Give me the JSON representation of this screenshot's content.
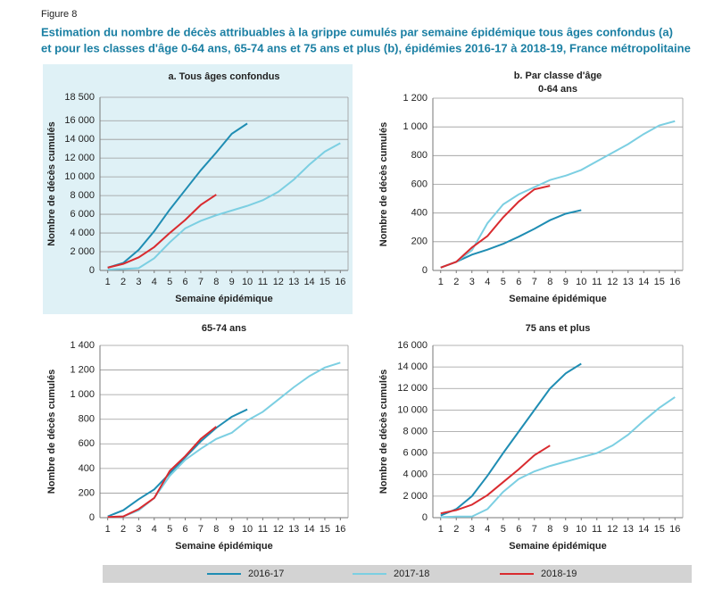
{
  "figure": "Figure 8",
  "title_lines": [
    "Estimation du nombre de décès attribuables à la grippe cumulés par semaine épidémique tous âges confondus (a)",
    "et pour les classes d'âge 0-64 ans, 65-74 ans et 75 ans et plus (b), épidémies 2016-17 à 2018-19, France métropolitaine"
  ],
  "chart_data": [
    {
      "type": "line",
      "title": "a. Tous âges confondus",
      "xlabel": "Semaine épidémique",
      "ylabel": "Nombre de décès cumulés",
      "x": [
        1,
        2,
        3,
        4,
        5,
        6,
        7,
        8,
        9,
        10,
        11,
        12,
        13,
        14,
        15,
        16
      ],
      "xlim": [
        0.5,
        16.5
      ],
      "xticks": [
        1,
        2,
        3,
        4,
        5,
        6,
        7,
        8,
        9,
        10,
        11,
        12,
        13,
        14,
        15,
        16
      ],
      "ylim": [
        0,
        18500
      ],
      "yticks": [
        0,
        {
          "value": 2000,
          "label": "2 000"
        },
        {
          "value": 4000,
          "label": "4 000"
        },
        {
          "value": 6000,
          "label": "6 000"
        },
        {
          "value": 8000,
          "label": "8 000"
        },
        {
          "value": 10000,
          "label": "10 000"
        },
        {
          "value": 12000,
          "label": "12 000"
        },
        {
          "value": 14000,
          "label": "14 000"
        },
        {
          "value": 16000,
          "label": "16 000"
        },
        {
          "value": 18500,
          "label": "18 500"
        }
      ],
      "grid": true,
      "background": "#dff1f6",
      "series": [
        {
          "name": "2016-17",
          "color": "#1f8db3",
          "values": [
            300,
            800,
            2200,
            4200,
            6500,
            8600,
            10700,
            12600,
            14600,
            15700,
            null,
            null,
            null,
            null,
            null,
            null
          ]
        },
        {
          "name": "2017-18",
          "color": "#7ccfe2",
          "values": [
            100,
            150,
            250,
            1300,
            3000,
            4500,
            5300,
            5900,
            6400,
            6900,
            7500,
            8400,
            9700,
            11300,
            12700,
            13600
          ]
        },
        {
          "name": "2018-19",
          "color": "#d92b2f",
          "values": [
            300,
            700,
            1400,
            2500,
            4000,
            5400,
            7000,
            8100,
            null,
            null,
            null,
            null,
            null,
            null,
            null,
            null
          ]
        }
      ]
    },
    {
      "type": "line",
      "title": "b. Par classe d'âge",
      "subtitle": "0-64 ans",
      "xlabel": "Semaine épidémique",
      "ylabel": "Nombre de décès cumulés",
      "x": [
        1,
        2,
        3,
        4,
        5,
        6,
        7,
        8,
        9,
        10,
        11,
        12,
        13,
        14,
        15,
        16
      ],
      "xlim": [
        0.5,
        16.5
      ],
      "xticks": [
        1,
        2,
        3,
        4,
        5,
        6,
        7,
        8,
        9,
        10,
        11,
        12,
        13,
        14,
        15,
        16
      ],
      "ylim": [
        0,
        1200
      ],
      "yticks": [
        0,
        200,
        400,
        600,
        800,
        {
          "value": 1000,
          "label": "1 000"
        },
        {
          "value": 1200,
          "label": "1 200"
        }
      ],
      "grid": true,
      "series": [
        {
          "values": [
            20,
            60,
            110,
            145,
            185,
            235,
            290,
            350,
            395,
            420,
            null,
            null,
            null,
            null,
            null,
            null
          ]
        },
        {
          "values": [
            20,
            60,
            140,
            330,
            460,
            530,
            580,
            630,
            660,
            700,
            760,
            820,
            880,
            950,
            1010,
            1040
          ]
        },
        {
          "values": [
            20,
            60,
            160,
            240,
            370,
            480,
            565,
            590,
            null,
            null,
            null,
            null,
            null,
            null,
            null,
            null
          ]
        }
      ]
    },
    {
      "type": "line",
      "title": "65-74 ans",
      "xlabel": "Semaine épidémique",
      "ylabel": "Nombre de décès cumulés",
      "x": [
        1,
        2,
        3,
        4,
        5,
        6,
        7,
        8,
        9,
        10,
        11,
        12,
        13,
        14,
        15,
        16
      ],
      "xlim": [
        0.5,
        16.5
      ],
      "xticks": [
        1,
        2,
        3,
        4,
        5,
        6,
        7,
        8,
        9,
        10,
        11,
        12,
        13,
        14,
        15,
        16
      ],
      "ylim": [
        0,
        1400
      ],
      "yticks": [
        0,
        200,
        400,
        600,
        800,
        {
          "value": 1000,
          "label": "1 000"
        },
        {
          "value": 1200,
          "label": "1 200"
        },
        {
          "value": 1400,
          "label": "1 400"
        }
      ],
      "grid": true,
      "series": [
        {
          "values": [
            10,
            60,
            150,
            230,
            360,
            490,
            620,
            730,
            820,
            880,
            null,
            null,
            null,
            null,
            null,
            null
          ]
        },
        {
          "values": [
            5,
            10,
            60,
            160,
            340,
            470,
            560,
            640,
            690,
            790,
            860,
            960,
            1060,
            1150,
            1220,
            1260
          ]
        },
        {
          "values": [
            5,
            10,
            70,
            160,
            380,
            500,
            640,
            740,
            null,
            null,
            null,
            null,
            null,
            null,
            null,
            null
          ]
        }
      ]
    },
    {
      "type": "line",
      "title": "75 ans et plus",
      "xlabel": "Semaine épidémique",
      "ylabel": "Nombre de décès cumulés",
      "x": [
        1,
        2,
        3,
        4,
        5,
        6,
        7,
        8,
        9,
        10,
        11,
        12,
        13,
        14,
        15,
        16
      ],
      "xlim": [
        0.5,
        16.5
      ],
      "xticks": [
        1,
        2,
        3,
        4,
        5,
        6,
        7,
        8,
        9,
        10,
        11,
        12,
        13,
        14,
        15,
        16
      ],
      "ylim": [
        0,
        16000
      ],
      "yticks": [
        0,
        {
          "value": 2000,
          "label": "2 000"
        },
        {
          "value": 4000,
          "label": "4 000"
        },
        {
          "value": 6000,
          "label": "6 000"
        },
        {
          "value": 8000,
          "label": "8 000"
        },
        {
          "value": 10000,
          "label": "10 000"
        },
        {
          "value": 12000,
          "label": "12 000"
        },
        {
          "value": 14000,
          "label": "14 000"
        },
        {
          "value": 16000,
          "label": "16 000"
        }
      ],
      "grid": true,
      "series": [
        {
          "values": [
            200,
            800,
            2000,
            3900,
            6000,
            8000,
            10000,
            12000,
            13400,
            14300,
            null,
            null,
            null,
            null,
            null,
            null
          ]
        },
        {
          "values": [
            50,
            100,
            100,
            800,
            2400,
            3600,
            4300,
            4800,
            5200,
            5600,
            6000,
            6700,
            7700,
            9000,
            10200,
            11200
          ]
        },
        {
          "values": [
            400,
            700,
            1200,
            2100,
            3300,
            4500,
            5800,
            6700,
            null,
            null,
            null,
            null,
            null,
            null,
            null,
            null
          ]
        }
      ]
    }
  ]
}
